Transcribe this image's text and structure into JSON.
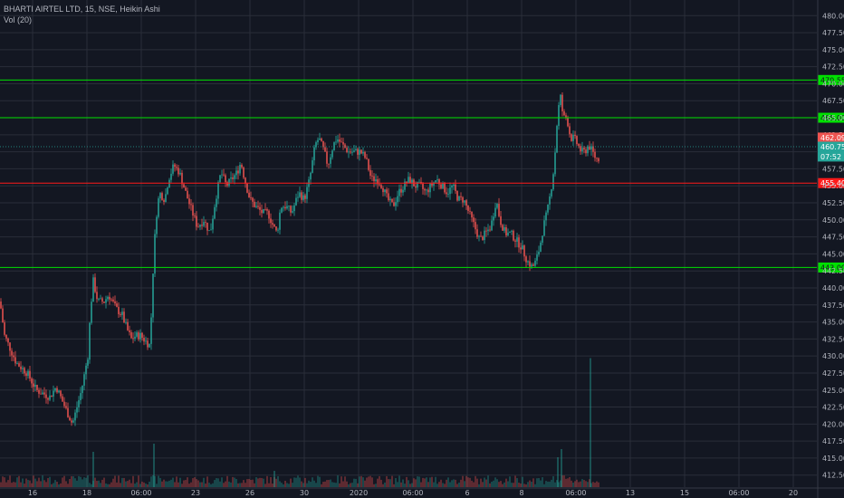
{
  "legend": {
    "line1": "BHARTI AIRTEL LTD, 15, NSE, Heikin Ashi",
    "line2": "Vol (20)"
  },
  "colors": {
    "background": "#131722",
    "grid": "#2a2e39",
    "up": "#26a69a",
    "down": "#ef5350",
    "support": "#00e000",
    "resistance": "#ff1a1a",
    "axis_text": "#b2b5be"
  },
  "chart_data": {
    "type": "candlestick",
    "style": "Heikin Ashi",
    "ylim": [
      411,
      481.5
    ],
    "y_ticks": [
      "480.00",
      "477.50",
      "475.00",
      "472.50",
      "470.00",
      "467.50",
      "465.00",
      "462.50",
      "460.00",
      "457.50",
      "455.00",
      "452.50",
      "450.00",
      "447.50",
      "445.00",
      "442.50",
      "440.00",
      "437.50",
      "435.00",
      "432.50",
      "430.00",
      "427.50",
      "425.00",
      "422.50",
      "420.00",
      "417.50",
      "415.00",
      "412.50"
    ],
    "x_ticks": [
      "16",
      "18",
      "06:00",
      "23",
      "26",
      "30",
      "2020",
      "06:00",
      "6",
      "8",
      "06:00",
      "13",
      "15",
      "06:00",
      "20"
    ],
    "grid": true,
    "price_path": [
      {
        "x": 0,
        "y": 438
      },
      {
        "x": 5,
        "y": 433
      },
      {
        "x": 18,
        "y": 429
      },
      {
        "x": 30,
        "y": 427.5
      },
      {
        "x": 40,
        "y": 425
      },
      {
        "x": 55,
        "y": 424
      },
      {
        "x": 62,
        "y": 425.5
      },
      {
        "x": 70,
        "y": 423
      },
      {
        "x": 80,
        "y": 420
      },
      {
        "x": 90,
        "y": 425
      },
      {
        "x": 97,
        "y": 430
      },
      {
        "x": 100,
        "y": 437
      },
      {
        "x": 103,
        "y": 441
      },
      {
        "x": 108,
        "y": 438
      },
      {
        "x": 115,
        "y": 438
      },
      {
        "x": 120,
        "y": 439
      },
      {
        "x": 128,
        "y": 437
      },
      {
        "x": 135,
        "y": 436
      },
      {
        "x": 140,
        "y": 434
      },
      {
        "x": 145,
        "y": 432.5
      },
      {
        "x": 150,
        "y": 433
      },
      {
        "x": 155,
        "y": 433
      },
      {
        "x": 162,
        "y": 432
      },
      {
        "x": 166,
        "y": 431.5
      },
      {
        "x": 168,
        "y": 440
      },
      {
        "x": 172,
        "y": 450
      },
      {
        "x": 176,
        "y": 454
      },
      {
        "x": 182,
        "y": 453
      },
      {
        "x": 186,
        "y": 456
      },
      {
        "x": 192,
        "y": 458
      },
      {
        "x": 198,
        "y": 457
      },
      {
        "x": 205,
        "y": 454
      },
      {
        "x": 210,
        "y": 452
      },
      {
        "x": 218,
        "y": 449
      },
      {
        "x": 225,
        "y": 450
      },
      {
        "x": 232,
        "y": 448
      },
      {
        "x": 238,
        "y": 453
      },
      {
        "x": 244,
        "y": 457
      },
      {
        "x": 250,
        "y": 455
      },
      {
        "x": 256,
        "y": 456
      },
      {
        "x": 262,
        "y": 457
      },
      {
        "x": 266,
        "y": 458.5
      },
      {
        "x": 270,
        "y": 456
      },
      {
        "x": 276,
        "y": 453
      },
      {
        "x": 282,
        "y": 452
      },
      {
        "x": 290,
        "y": 451
      },
      {
        "x": 296,
        "y": 451
      },
      {
        "x": 302,
        "y": 449
      },
      {
        "x": 306,
        "y": 448
      },
      {
        "x": 310,
        "y": 452
      },
      {
        "x": 316,
        "y": 452
      },
      {
        "x": 322,
        "y": 451
      },
      {
        "x": 330,
        "y": 454
      },
      {
        "x": 336,
        "y": 453
      },
      {
        "x": 342,
        "y": 456
      },
      {
        "x": 348,
        "y": 461
      },
      {
        "x": 352,
        "y": 462
      },
      {
        "x": 358,
        "y": 460
      },
      {
        "x": 362,
        "y": 458
      },
      {
        "x": 368,
        "y": 461
      },
      {
        "x": 372,
        "y": 462
      },
      {
        "x": 378,
        "y": 461
      },
      {
        "x": 385,
        "y": 460
      },
      {
        "x": 392,
        "y": 460
      },
      {
        "x": 398,
        "y": 460
      },
      {
        "x": 404,
        "y": 459
      },
      {
        "x": 410,
        "y": 456
      },
      {
        "x": 416,
        "y": 456
      },
      {
        "x": 422,
        "y": 455
      },
      {
        "x": 428,
        "y": 453
      },
      {
        "x": 434,
        "y": 452
      },
      {
        "x": 440,
        "y": 454
      },
      {
        "x": 446,
        "y": 455
      },
      {
        "x": 452,
        "y": 456
      },
      {
        "x": 458,
        "y": 455
      },
      {
        "x": 464,
        "y": 455
      },
      {
        "x": 470,
        "y": 454
      },
      {
        "x": 476,
        "y": 455
      },
      {
        "x": 482,
        "y": 456
      },
      {
        "x": 488,
        "y": 455
      },
      {
        "x": 494,
        "y": 454
      },
      {
        "x": 500,
        "y": 455
      },
      {
        "x": 506,
        "y": 453
      },
      {
        "x": 512,
        "y": 453
      },
      {
        "x": 518,
        "y": 451
      },
      {
        "x": 524,
        "y": 449
      },
      {
        "x": 530,
        "y": 447
      },
      {
        "x": 536,
        "y": 448
      },
      {
        "x": 542,
        "y": 449
      },
      {
        "x": 548,
        "y": 453
      },
      {
        "x": 552,
        "y": 450
      },
      {
        "x": 558,
        "y": 448
      },
      {
        "x": 564,
        "y": 448
      },
      {
        "x": 570,
        "y": 447
      },
      {
        "x": 576,
        "y": 446
      },
      {
        "x": 582,
        "y": 444
      },
      {
        "x": 588,
        "y": 443
      },
      {
        "x": 592,
        "y": 444
      },
      {
        "x": 596,
        "y": 446
      },
      {
        "x": 600,
        "y": 449
      },
      {
        "x": 604,
        "y": 451
      },
      {
        "x": 608,
        "y": 454
      },
      {
        "x": 612,
        "y": 458
      },
      {
        "x": 616,
        "y": 466
      },
      {
        "x": 619,
        "y": 468
      },
      {
        "x": 622,
        "y": 465
      },
      {
        "x": 626,
        "y": 465
      },
      {
        "x": 630,
        "y": 462
      },
      {
        "x": 634,
        "y": 462
      },
      {
        "x": 638,
        "y": 461
      },
      {
        "x": 642,
        "y": 460
      },
      {
        "x": 646,
        "y": 460
      },
      {
        "x": 650,
        "y": 461
      },
      {
        "x": 654,
        "y": 460
      },
      {
        "x": 658,
        "y": 459
      },
      {
        "x": 661,
        "y": 459
      }
    ],
    "horizontal_levels": [
      {
        "label": "470.55",
        "value": 470.55,
        "kind": "support"
      },
      {
        "label": "465.00",
        "value": 465.0,
        "kind": "support"
      },
      {
        "label": "455.40",
        "value": 455.4,
        "kind": "resistance"
      },
      {
        "label": "443.00",
        "value": 443.0,
        "kind": "support"
      }
    ],
    "price_tags": [
      {
        "label": "462.09",
        "value": 462.09,
        "color": "#ef5350"
      },
      {
        "label": "460.75",
        "value": 460.75,
        "color": "#26a69a"
      },
      {
        "label": "07:52",
        "value": 459.3,
        "color": "#26a69a"
      }
    ],
    "current_price_line": 460.75,
    "volume_spikes": [
      {
        "x": 103,
        "v": 2.6
      },
      {
        "x": 170,
        "v": 3.2
      },
      {
        "x": 303,
        "v": 1.2
      },
      {
        "x": 616,
        "v": 2.2
      },
      {
        "x": 620,
        "v": 2.8
      },
      {
        "x": 652,
        "v": 9.5
      }
    ]
  }
}
